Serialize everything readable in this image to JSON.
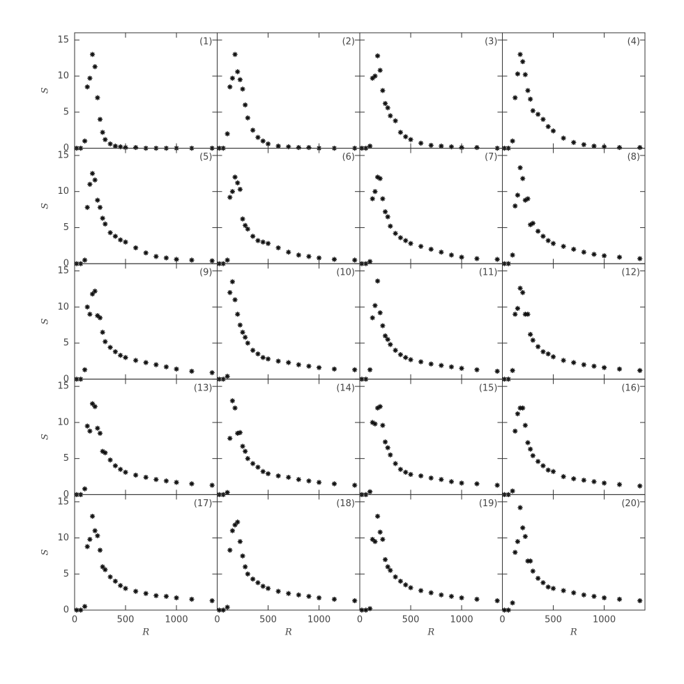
{
  "chart_data": [
    {
      "type": "scatter",
      "annotation": "(1)",
      "ylabel": "S",
      "x": [
        20,
        60,
        100,
        125,
        150,
        175,
        200,
        225,
        250,
        275,
        300,
        350,
        400,
        450,
        500,
        600,
        700,
        800,
        900,
        1000,
        1150,
        1350
      ],
      "values": [
        0,
        0,
        1,
        8.5,
        9.7,
        13,
        11.3,
        7,
        4,
        2.2,
        1.2,
        0.6,
        0.3,
        0.2,
        0.1,
        0.1,
        0,
        0,
        0,
        0,
        0,
        0
      ],
      "xlim": [
        0,
        1400
      ],
      "ylim": [
        0,
        16
      ],
      "xticks": [
        0,
        500,
        1000
      ],
      "yticks": [
        0,
        5,
        10,
        15
      ]
    },
    {
      "type": "scatter",
      "annotation": "(2)",
      "x": [
        20,
        60,
        100,
        125,
        150,
        175,
        200,
        225,
        250,
        275,
        300,
        350,
        400,
        450,
        500,
        600,
        700,
        800,
        900,
        1000,
        1150,
        1350
      ],
      "values": [
        0,
        0,
        2,
        8.5,
        9.7,
        13,
        10.6,
        9.5,
        8.2,
        6,
        4.2,
        2.5,
        1.5,
        1,
        0.6,
        0.3,
        0.2,
        0.1,
        0.1,
        0,
        0,
        0
      ],
      "xlim": [
        0,
        1400
      ],
      "ylim": [
        0,
        16
      ],
      "xticks": [
        0,
        500,
        1000
      ],
      "yticks": [
        0,
        5,
        10,
        15
      ]
    },
    {
      "type": "scatter",
      "annotation": "(3)",
      "x": [
        20,
        60,
        100,
        125,
        150,
        175,
        200,
        225,
        250,
        275,
        300,
        350,
        400,
        450,
        500,
        600,
        700,
        800,
        900,
        1000,
        1150,
        1350
      ],
      "values": [
        0,
        0,
        0.3,
        9.7,
        10,
        12.8,
        10.8,
        8,
        6.2,
        5.6,
        4.5,
        3.8,
        2.2,
        1.6,
        1.2,
        0.7,
        0.4,
        0.3,
        0.2,
        0.1,
        0.1,
        0
      ],
      "xlim": [
        0,
        1400
      ],
      "ylim": [
        0,
        16
      ],
      "xticks": [
        0,
        500,
        1000
      ],
      "yticks": [
        0,
        5,
        10,
        15
      ]
    },
    {
      "type": "scatter",
      "annotation": "(4)",
      "x": [
        20,
        60,
        100,
        125,
        150,
        175,
        200,
        225,
        250,
        275,
        300,
        350,
        400,
        450,
        500,
        600,
        700,
        800,
        900,
        1000,
        1150,
        1350
      ],
      "values": [
        0,
        0,
        1,
        7,
        10.3,
        13,
        12,
        10.2,
        8,
        6.8,
        5.2,
        4.7,
        4,
        3,
        2.4,
        1.4,
        0.8,
        0.5,
        0.3,
        0.2,
        0.1,
        0.1
      ],
      "xlim": [
        0,
        1400
      ],
      "ylim": [
        0,
        16
      ],
      "xticks": [
        0,
        500,
        1000
      ],
      "yticks": [
        0,
        5,
        10,
        15
      ]
    },
    {
      "type": "scatter",
      "annotation": "(5)",
      "ylabel": "S",
      "x": [
        20,
        60,
        100,
        125,
        150,
        175,
        200,
        225,
        250,
        275,
        300,
        350,
        400,
        450,
        500,
        600,
        700,
        800,
        900,
        1000,
        1150,
        1350
      ],
      "values": [
        0,
        0,
        0.5,
        7.8,
        11,
        12.5,
        11.6,
        8.8,
        7.8,
        6.3,
        5.5,
        4.3,
        3.8,
        3.3,
        3,
        2.2,
        1.5,
        1,
        0.8,
        0.6,
        0.5,
        0.4
      ],
      "xlim": [
        0,
        1400
      ],
      "ylim": [
        0,
        16
      ],
      "xticks": [
        0,
        500,
        1000
      ],
      "yticks": [
        0,
        5,
        10,
        15
      ]
    },
    {
      "type": "scatter",
      "annotation": "(6)",
      "x": [
        20,
        60,
        100,
        125,
        150,
        175,
        200,
        225,
        250,
        275,
        300,
        350,
        400,
        450,
        500,
        600,
        700,
        800,
        900,
        1000,
        1150,
        1350
      ],
      "values": [
        0,
        0,
        0.5,
        9.2,
        10,
        12,
        11.2,
        10.3,
        6.2,
        5.3,
        4.8,
        3.8,
        3.2,
        3,
        2.8,
        2.2,
        1.6,
        1.2,
        1,
        0.8,
        0.6,
        0.5
      ],
      "xlim": [
        0,
        1400
      ],
      "ylim": [
        0,
        16
      ],
      "xticks": [
        0,
        500,
        1000
      ],
      "yticks": [
        0,
        5,
        10,
        15
      ]
    },
    {
      "type": "scatter",
      "annotation": "(7)",
      "x": [
        20,
        60,
        100,
        125,
        150,
        175,
        200,
        225,
        250,
        275,
        300,
        350,
        400,
        450,
        500,
        600,
        700,
        800,
        900,
        1000,
        1150,
        1350
      ],
      "values": [
        0,
        0,
        0.3,
        9,
        10,
        12,
        11.8,
        9,
        7.2,
        6.5,
        5.2,
        4.2,
        3.6,
        3.2,
        2.8,
        2.4,
        2,
        1.6,
        1.2,
        0.9,
        0.7,
        0.6
      ],
      "xlim": [
        0,
        1400
      ],
      "ylim": [
        0,
        16
      ],
      "xticks": [
        0,
        500,
        1000
      ],
      "yticks": [
        0,
        5,
        10,
        15
      ]
    },
    {
      "type": "scatter",
      "annotation": "(8)",
      "x": [
        20,
        60,
        100,
        125,
        150,
        175,
        200,
        225,
        250,
        275,
        300,
        350,
        400,
        450,
        500,
        600,
        700,
        800,
        900,
        1000,
        1150,
        1350
      ],
      "values": [
        0,
        0,
        1.2,
        8,
        9.5,
        13.3,
        11.8,
        8.8,
        9,
        5.4,
        5.6,
        4.5,
        3.8,
        3.2,
        2.8,
        2.4,
        2,
        1.6,
        1.3,
        1.1,
        0.9,
        0.7
      ],
      "xlim": [
        0,
        1400
      ],
      "ylim": [
        0,
        16
      ],
      "xticks": [
        0,
        500,
        1000
      ],
      "yticks": [
        0,
        5,
        10,
        15
      ]
    },
    {
      "type": "scatter",
      "annotation": "(9)",
      "ylabel": "S",
      "x": [
        20,
        60,
        100,
        125,
        150,
        175,
        200,
        225,
        250,
        275,
        300,
        350,
        400,
        450,
        500,
        600,
        700,
        800,
        900,
        1000,
        1150,
        1350
      ],
      "values": [
        0,
        0,
        1.3,
        10,
        9,
        11.8,
        12.2,
        8.8,
        8.5,
        6.5,
        5.2,
        4.4,
        3.8,
        3.3,
        3,
        2.6,
        2.3,
        2,
        1.7,
        1.4,
        1.1,
        0.9
      ],
      "xlim": [
        0,
        1400
      ],
      "ylim": [
        0,
        16
      ],
      "xticks": [
        0,
        500,
        1000
      ],
      "yticks": [
        0,
        5,
        10,
        15
      ]
    },
    {
      "type": "scatter",
      "annotation": "(10)",
      "x": [
        20,
        60,
        100,
        125,
        150,
        175,
        200,
        225,
        250,
        275,
        300,
        350,
        400,
        450,
        500,
        600,
        700,
        800,
        900,
        1000,
        1150,
        1350
      ],
      "values": [
        0,
        0,
        0.4,
        12,
        13.5,
        11,
        9,
        7.5,
        6.5,
        5.8,
        5,
        4,
        3.5,
        3,
        2.8,
        2.5,
        2.3,
        2,
        1.8,
        1.6,
        1.4,
        1.3
      ],
      "xlim": [
        0,
        1400
      ],
      "ylim": [
        0,
        16
      ],
      "xticks": [
        0,
        500,
        1000
      ],
      "yticks": [
        0,
        5,
        10,
        15
      ]
    },
    {
      "type": "scatter",
      "annotation": "(11)",
      "x": [
        20,
        60,
        100,
        125,
        150,
        175,
        200,
        225,
        250,
        275,
        300,
        350,
        400,
        450,
        500,
        600,
        700,
        800,
        900,
        1000,
        1150,
        1350
      ],
      "values": [
        0,
        0,
        1.3,
        8.5,
        10.2,
        13.6,
        9.2,
        7.4,
        6,
        5.5,
        4.8,
        4,
        3.4,
        3,
        2.7,
        2.4,
        2.1,
        1.9,
        1.7,
        1.5,
        1.3,
        1.1
      ],
      "xlim": [
        0,
        1400
      ],
      "ylim": [
        0,
        16
      ],
      "xticks": [
        0,
        500,
        1000
      ],
      "yticks": [
        0,
        5,
        10,
        15
      ]
    },
    {
      "type": "scatter",
      "annotation": "(12)",
      "x": [
        20,
        60,
        100,
        125,
        150,
        175,
        200,
        225,
        250,
        275,
        300,
        350,
        400,
        450,
        500,
        600,
        700,
        800,
        900,
        1000,
        1150,
        1350
      ],
      "values": [
        0,
        0,
        1.2,
        9,
        9.8,
        12.6,
        12,
        9,
        9,
        6.2,
        5.4,
        4.5,
        3.8,
        3.5,
        3.1,
        2.6,
        2.3,
        2,
        1.8,
        1.6,
        1.4,
        1.2
      ],
      "xlim": [
        0,
        1400
      ],
      "ylim": [
        0,
        16
      ],
      "xticks": [
        0,
        500,
        1000
      ],
      "yticks": [
        0,
        5,
        10,
        15
      ]
    },
    {
      "type": "scatter",
      "annotation": "(13)",
      "ylabel": "S",
      "x": [
        20,
        60,
        100,
        125,
        150,
        175,
        200,
        225,
        250,
        275,
        300,
        350,
        400,
        450,
        500,
        600,
        700,
        800,
        900,
        1000,
        1150,
        1350
      ],
      "values": [
        0,
        0,
        0.8,
        9.5,
        8.8,
        12.6,
        12.2,
        9.2,
        8.5,
        6,
        5.8,
        4.8,
        4,
        3.5,
        3.1,
        2.7,
        2.4,
        2.1,
        1.9,
        1.7,
        1.5,
        1.3
      ],
      "xlim": [
        0,
        1400
      ],
      "ylim": [
        0,
        16
      ],
      "xticks": [
        0,
        500,
        1000
      ],
      "yticks": [
        0,
        5,
        10,
        15
      ]
    },
    {
      "type": "scatter",
      "annotation": "(14)",
      "x": [
        20,
        60,
        100,
        125,
        150,
        175,
        200,
        225,
        250,
        275,
        300,
        350,
        400,
        450,
        500,
        600,
        700,
        800,
        900,
        1000,
        1150,
        1350
      ],
      "values": [
        0,
        0,
        0.3,
        7.8,
        13,
        12,
        8.5,
        8.6,
        6.7,
        6,
        5,
        4.3,
        3.8,
        3.2,
        2.9,
        2.6,
        2.4,
        2.1,
        1.9,
        1.7,
        1.5,
        1.3
      ],
      "xlim": [
        0,
        1400
      ],
      "ylim": [
        0,
        16
      ],
      "xticks": [
        0,
        500,
        1000
      ],
      "yticks": [
        0,
        5,
        10,
        15
      ]
    },
    {
      "type": "scatter",
      "annotation": "(15)",
      "x": [
        20,
        60,
        100,
        125,
        150,
        175,
        200,
        225,
        250,
        275,
        300,
        350,
        400,
        450,
        500,
        600,
        700,
        800,
        900,
        1000,
        1150,
        1350
      ],
      "values": [
        0,
        0,
        0.4,
        10,
        9.8,
        12,
        12.2,
        9.6,
        7.3,
        6.5,
        5.5,
        4.3,
        3.5,
        3.1,
        2.8,
        2.6,
        2.3,
        2.1,
        1.8,
        1.6,
        1.5,
        1.3
      ],
      "xlim": [
        0,
        1400
      ],
      "ylim": [
        0,
        16
      ],
      "xticks": [
        0,
        500,
        1000
      ],
      "yticks": [
        0,
        5,
        10,
        15
      ]
    },
    {
      "type": "scatter",
      "annotation": "(16)",
      "x": [
        20,
        60,
        100,
        125,
        150,
        175,
        200,
        225,
        250,
        275,
        300,
        350,
        400,
        450,
        500,
        600,
        700,
        800,
        900,
        1000,
        1150,
        1350
      ],
      "values": [
        0,
        0,
        0.5,
        8.8,
        11.2,
        12,
        12,
        9.6,
        7.2,
        6.3,
        5.4,
        4.6,
        4,
        3.4,
        3.2,
        2.5,
        2.2,
        2,
        1.8,
        1.6,
        1.4,
        1.2
      ],
      "xlim": [
        0,
        1400
      ],
      "ylim": [
        0,
        16
      ],
      "xticks": [
        0,
        500,
        1000
      ],
      "yticks": [
        0,
        5,
        10,
        15
      ]
    },
    {
      "type": "scatter",
      "annotation": "(17)",
      "ylabel": "S",
      "xlabel": "R",
      "x": [
        20,
        60,
        100,
        125,
        150,
        175,
        200,
        225,
        250,
        275,
        300,
        350,
        400,
        450,
        500,
        600,
        700,
        800,
        900,
        1000,
        1150,
        1350
      ],
      "values": [
        0,
        0,
        0.5,
        8.8,
        9.8,
        13,
        11,
        10.3,
        8.3,
        6,
        5.6,
        4.6,
        4,
        3.4,
        3,
        2.6,
        2.3,
        2,
        1.9,
        1.7,
        1.5,
        1.3
      ],
      "xlim": [
        0,
        1400
      ],
      "ylim": [
        0,
        16
      ],
      "xticks": [
        0,
        500,
        1000
      ],
      "yticks": [
        0,
        5,
        10,
        15
      ]
    },
    {
      "type": "scatter",
      "annotation": "(18)",
      "xlabel": "R",
      "x": [
        20,
        60,
        100,
        125,
        150,
        175,
        200,
        225,
        250,
        275,
        300,
        350,
        400,
        450,
        500,
        600,
        700,
        800,
        900,
        1000,
        1150,
        1350
      ],
      "values": [
        0,
        0,
        0.4,
        8.3,
        11,
        11.8,
        12.2,
        9.5,
        7.5,
        6,
        5,
        4.3,
        3.8,
        3.3,
        3,
        2.6,
        2.3,
        2.1,
        1.9,
        1.7,
        1.5,
        1.3
      ],
      "xlim": [
        0,
        1400
      ],
      "ylim": [
        0,
        16
      ],
      "xticks": [
        0,
        500,
        1000
      ],
      "yticks": [
        0,
        5,
        10,
        15
      ]
    },
    {
      "type": "scatter",
      "annotation": "(19)",
      "xlabel": "R",
      "x": [
        20,
        60,
        100,
        125,
        150,
        175,
        200,
        225,
        250,
        275,
        300,
        350,
        400,
        450,
        500,
        600,
        700,
        800,
        900,
        1000,
        1150,
        1350
      ],
      "values": [
        0,
        0,
        0.2,
        9.8,
        9.5,
        13,
        10.8,
        9.8,
        7,
        6,
        5.5,
        4.6,
        4,
        3.5,
        3.1,
        2.7,
        2.4,
        2.1,
        1.9,
        1.7,
        1.5,
        1.3
      ],
      "xlim": [
        0,
        1400
      ],
      "ylim": [
        0,
        16
      ],
      "xticks": [
        0,
        500,
        1000
      ],
      "yticks": [
        0,
        5,
        10,
        15
      ]
    },
    {
      "type": "scatter",
      "annotation": "(20)",
      "xlabel": "R",
      "x": [
        20,
        60,
        100,
        125,
        150,
        175,
        200,
        225,
        250,
        275,
        300,
        350,
        400,
        450,
        500,
        600,
        700,
        800,
        900,
        1000,
        1150,
        1350
      ],
      "values": [
        0,
        0,
        1,
        8,
        9.5,
        14.2,
        11.4,
        10.2,
        6.8,
        6.8,
        5.4,
        4.4,
        3.8,
        3.2,
        3,
        2.7,
        2.4,
        2.1,
        1.9,
        1.7,
        1.5,
        1.3
      ],
      "xlim": [
        0,
        1400
      ],
      "ylim": [
        0,
        16
      ],
      "xticks": [
        0,
        500,
        1000
      ],
      "yticks": [
        0,
        5,
        10,
        15
      ]
    }
  ]
}
